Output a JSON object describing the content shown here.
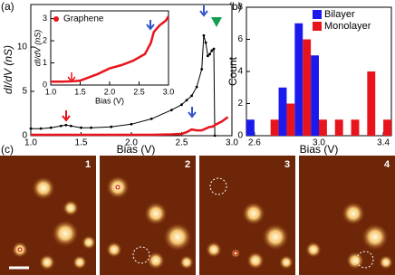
{
  "panel_labels": [
    "(a)",
    "(b)",
    "(c)"
  ],
  "image_labels": [
    "1",
    "2",
    "3",
    "4"
  ],
  "chart_data": [
    {
      "type": "line",
      "xlabel": "Bias (V)",
      "ylabel": "dI/dV (nS)",
      "xlim": [
        1,
        3
      ],
      "ylim": [
        0,
        14.8
      ],
      "xticks": [
        {
          "value": 1,
          "label": "1.0"
        },
        1.5,
        {
          "value": 2,
          "label": "2.0"
        },
        2.5,
        {
          "value": 3,
          "label": "3.0"
        }
      ],
      "yticks": [
        0,
        5,
        10
      ],
      "x": [
        1.0,
        1.1,
        1.2,
        1.3,
        1.35,
        1.4,
        1.5,
        1.6,
        1.8,
        2.0,
        2.2,
        2.4,
        2.5,
        2.55,
        2.6,
        2.65,
        2.7,
        2.72,
        2.74,
        2.76,
        2.78,
        2.8,
        2.82,
        2.83,
        2.9,
        2.96
      ],
      "series": [
        {
          "color": "#000000",
          "markers": true,
          "values": [
            0.8,
            0.8,
            0.9,
            1.1,
            1.2,
            1.1,
            0.9,
            0.9,
            1.0,
            1.3,
            1.9,
            2.9,
            3.5,
            4.0,
            4.5,
            5.5,
            7.5,
            11.3,
            10.5,
            9.0,
            9.2,
            9.6,
            9.8,
            0,
            null,
            null
          ]
        },
        {
          "color": "#e8141c",
          "markers": false,
          "values": [
            0.1,
            0.1,
            0.1,
            0.1,
            0.1,
            0.1,
            0.1,
            0.1,
            0.1,
            0.1,
            0.1,
            0.15,
            0.2,
            0.4,
            0.7,
            0.6,
            0.6,
            0.7,
            0.8,
            0.9,
            1.0,
            1.0,
            1.1,
            1.2,
            1.6,
            2.1
          ]
        }
      ]
    },
    {
      "type": "line",
      "xlabel": "Bias (V)",
      "ylabel": "dI/dV (nS)",
      "xlim": [
        1,
        3
      ],
      "ylim": [
        0,
        3.35
      ],
      "xticks": [
        {
          "value": 1,
          "label": "1.0"
        },
        1.5,
        {
          "value": 2,
          "label": "2.0"
        },
        2.5,
        {
          "value": 3,
          "label": "3.0"
        }
      ],
      "yticks": [
        0,
        1,
        2,
        3
      ],
      "x": [
        1.0,
        1.2,
        1.4,
        1.5,
        1.6,
        1.8,
        2.0,
        2.2,
        2.4,
        2.6,
        2.7,
        2.75,
        2.85,
        2.95,
        3.0
      ],
      "series": [
        {
          "name": "Graphene",
          "color": "#e8141c",
          "markers": false,
          "values": [
            0.15,
            0.15,
            0.17,
            0.2,
            0.3,
            0.5,
            0.75,
            0.9,
            1.1,
            1.4,
            1.9,
            2.4,
            2.7,
            2.9,
            3.1
          ]
        }
      ]
    },
    {
      "type": "bar",
      "xlabel": "Bias (V)",
      "ylabel": "Count",
      "xlim": [
        2.55,
        3.45
      ],
      "ylim": [
        0,
        8
      ],
      "xticks": [
        2.6,
        {
          "value": 3,
          "label": "3.0"
        },
        3.4
      ],
      "yticks": [
        0,
        2,
        4,
        6,
        8
      ],
      "x": [
        2.6,
        2.7,
        2.8,
        2.9,
        3.0,
        3.1,
        3.2,
        3.3,
        3.4
      ],
      "series": [
        {
          "name": "Bilayer",
          "color": "#1a1aef",
          "values": [
            1,
            0,
            3,
            7,
            5,
            0,
            0,
            0,
            0
          ]
        },
        {
          "name": "Monolayer",
          "color": "#e8141c",
          "values": [
            0,
            1,
            2,
            6,
            1,
            1,
            1,
            4,
            1
          ]
        }
      ]
    }
  ]
}
